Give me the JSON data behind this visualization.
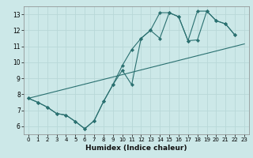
{
  "xlabel": "Humidex (Indice chaleur)",
  "background_color": "#cce8e8",
  "grid_color": "#b8d8d8",
  "line_color": "#2a7070",
  "xlim": [
    -0.5,
    23.5
  ],
  "ylim": [
    5.5,
    13.5
  ],
  "xticks": [
    0,
    1,
    2,
    3,
    4,
    5,
    6,
    7,
    8,
    9,
    10,
    11,
    12,
    13,
    14,
    15,
    16,
    17,
    18,
    19,
    20,
    21,
    22,
    23
  ],
  "yticks": [
    6,
    7,
    8,
    9,
    10,
    11,
    12,
    13
  ],
  "line1_x": [
    0,
    1,
    2,
    3,
    4,
    5,
    6,
    7,
    8,
    9,
    10,
    11,
    12,
    13,
    14,
    15,
    16,
    17,
    18,
    19,
    20,
    21,
    22
  ],
  "line1_y": [
    7.75,
    7.5,
    7.2,
    6.8,
    6.7,
    6.3,
    5.85,
    6.35,
    7.55,
    8.6,
    9.5,
    8.6,
    11.5,
    12.0,
    11.5,
    13.1,
    12.85,
    11.35,
    11.4,
    13.2,
    12.6,
    12.4,
    11.7
  ],
  "line2_x": [
    0,
    1,
    2,
    3,
    4,
    5,
    6,
    7,
    8,
    9,
    10,
    11,
    12,
    13,
    14,
    15,
    16,
    17,
    18,
    19,
    20,
    21,
    22
  ],
  "line2_y": [
    7.75,
    7.5,
    7.2,
    6.8,
    6.7,
    6.3,
    5.85,
    6.35,
    7.55,
    8.6,
    9.8,
    10.8,
    11.5,
    12.0,
    13.1,
    13.1,
    12.85,
    11.35,
    13.2,
    13.2,
    12.6,
    12.4,
    11.7
  ],
  "line3_x": [
    0,
    23
  ],
  "line3_y": [
    7.75,
    11.15
  ]
}
